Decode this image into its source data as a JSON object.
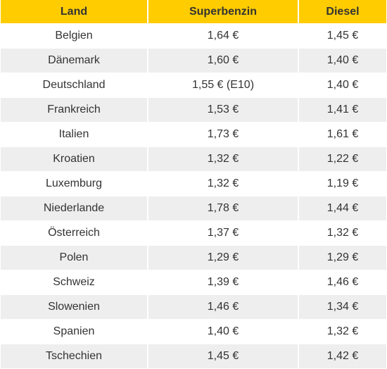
{
  "table": {
    "headers": [
      "Land",
      "Superbenzin",
      "Diesel"
    ],
    "rows": [
      {
        "land": "Belgien",
        "superbenzin": "1,64 €",
        "diesel": "1,45 €"
      },
      {
        "land": "Dänemark",
        "superbenzin": "1,60 €",
        "diesel": "1,40 €"
      },
      {
        "land": "Deutschland",
        "superbenzin": "1,55 € (E10)",
        "diesel": "1,40 €"
      },
      {
        "land": "Frankreich",
        "superbenzin": "1,53 €",
        "diesel": "1,41 €"
      },
      {
        "land": "Italien",
        "superbenzin": "1,73 €",
        "diesel": "1,61 €"
      },
      {
        "land": "Kroatien",
        "superbenzin": "1,32 €",
        "diesel": "1,22 €"
      },
      {
        "land": "Luxemburg",
        "superbenzin": "1,32 €",
        "diesel": "1,19 €"
      },
      {
        "land": "Niederlande",
        "superbenzin": "1,78 €",
        "diesel": "1,44 €"
      },
      {
        "land": "Österreich",
        "superbenzin": "1,37 €",
        "diesel": "1,32 €"
      },
      {
        "land": "Polen",
        "superbenzin": "1,29 €",
        "diesel": "1,29 €"
      },
      {
        "land": "Schweiz",
        "superbenzin": "1,39 €",
        "diesel": "1,46 €"
      },
      {
        "land": "Slowenien",
        "superbenzin": "1,46 €",
        "diesel": "1,34 €"
      },
      {
        "land": "Spanien",
        "superbenzin": "1,40 €",
        "diesel": "1,32 €"
      },
      {
        "land": "Tschechien",
        "superbenzin": "1,45 €",
        "diesel": "1,42 €"
      }
    ]
  },
  "colors": {
    "header_bg": "#ffcc00",
    "row_alt_bg": "#eeeeee",
    "text": "#333333"
  }
}
